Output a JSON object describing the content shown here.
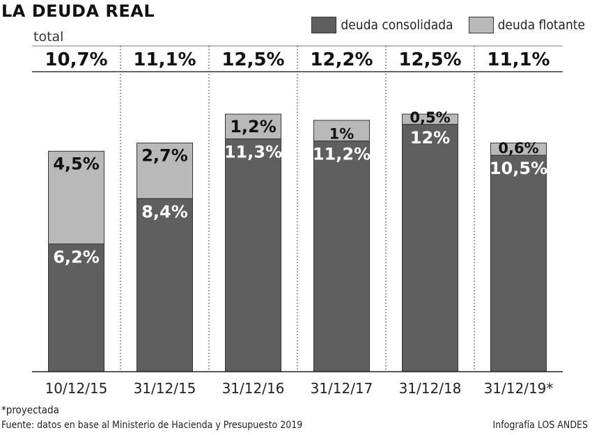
{
  "title": "LA DEUDA REAL",
  "total_label": "total",
  "legend": {
    "consolidated": "deuda consolidada",
    "floating": "deuda flotante"
  },
  "colors": {
    "consolidated": "#5f5f5f",
    "floating": "#b9b9b9"
  },
  "footnote": "*proyectada",
  "source": "Fuente: datos en base al Ministerio de Hacienda y Presupuesto 2019",
  "credit": "Infografía LOS ANDES",
  "chart_data": {
    "type": "bar",
    "stacked": true,
    "categories": [
      "10/12/15",
      "31/12/15",
      "31/12/16",
      "31/12/17",
      "31/12/18",
      "31/12/19*"
    ],
    "totals": [
      "10,7%",
      "11,1%",
      "12,5%",
      "12,2%",
      "12,5%",
      "11,1%"
    ],
    "series": [
      {
        "name": "deuda consolidada",
        "values": [
          6.2,
          8.4,
          11.3,
          11.2,
          12.0,
          10.5
        ],
        "labels": [
          "6,2%",
          "8,4%",
          "11,3%",
          "11,2%",
          "12%",
          "10,5%"
        ]
      },
      {
        "name": "deuda flotante",
        "values": [
          4.5,
          2.7,
          1.2,
          1.0,
          0.5,
          0.6
        ],
        "labels": [
          "4,5%",
          "2,7%",
          "1,2%",
          "1%",
          "0,5%",
          "0,6%"
        ]
      }
    ],
    "ylim": [
      0,
      13.5
    ],
    "legend_position": "top-right"
  }
}
